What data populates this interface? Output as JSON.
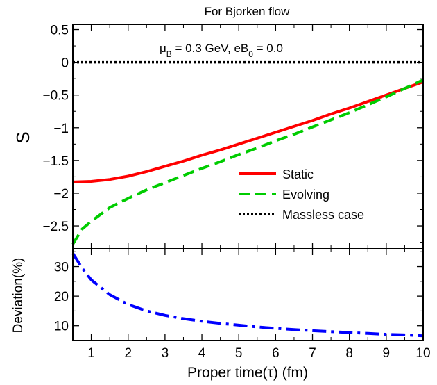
{
  "chart_data": [
    {
      "type": "line",
      "title": "For Bjorken flow",
      "annotation": {
        "mu_sym": "μ",
        "mu_sub": "B",
        "mid": " = 0.3 GeV, eB",
        "b_sub": "0",
        "tail": " = 0.0"
      },
      "ylabel": "S",
      "xlabel": "",
      "xlim": [
        0.5,
        10
      ],
      "ylim": [
        -2.85,
        0.58
      ],
      "xticks": [
        1,
        2,
        3,
        4,
        5,
        6,
        7,
        8,
        9,
        10
      ],
      "yticks": [
        0.5,
        0,
        -0.5,
        -1,
        -1.5,
        -2,
        -2.5
      ],
      "ytick_labels": [
        "0.5",
        "0",
        "−0.5",
        "−1",
        "−1.5",
        "−2",
        "−2.5"
      ],
      "legend_position": "lower-right",
      "series": [
        {
          "name": "Static",
          "color": "#ff0000",
          "dash": "solid",
          "x": [
            0.5,
            1,
            1.5,
            2,
            2.5,
            3,
            3.5,
            4,
            4.5,
            5,
            5.5,
            6,
            6.5,
            7,
            7.5,
            8,
            8.5,
            9,
            9.5,
            10
          ],
          "y": [
            -1.83,
            -1.82,
            -1.79,
            -1.74,
            -1.67,
            -1.59,
            -1.51,
            -1.42,
            -1.34,
            -1.25,
            -1.16,
            -1.07,
            -0.98,
            -0.89,
            -0.79,
            -0.7,
            -0.6,
            -0.5,
            -0.4,
            -0.3
          ]
        },
        {
          "name": "Evolving",
          "color": "#00cc00",
          "dash": "long-dash",
          "x": [
            0.5,
            0.75,
            1,
            1.5,
            2,
            2.5,
            3,
            3.5,
            4,
            4.5,
            5,
            5.5,
            6,
            6.5,
            7,
            7.5,
            8,
            8.5,
            9,
            9.5,
            10
          ],
          "y": [
            -2.78,
            -2.55,
            -2.43,
            -2.22,
            -2.08,
            -1.95,
            -1.84,
            -1.73,
            -1.62,
            -1.52,
            -1.41,
            -1.31,
            -1.2,
            -1.1,
            -0.99,
            -0.88,
            -0.77,
            -0.65,
            -0.53,
            -0.4,
            -0.27
          ]
        },
        {
          "name": "Massless case",
          "color": "#000000",
          "dash": "dotted",
          "x": [
            0.5,
            10
          ],
          "y": [
            0,
            0
          ]
        }
      ]
    },
    {
      "type": "line",
      "ylabel": "Deviation(%)",
      "xlabel": "Proper time(τ) (fm)",
      "xlim": [
        0.5,
        10
      ],
      "ylim": [
        5,
        36
      ],
      "xticks": [
        1,
        2,
        3,
        4,
        5,
        6,
        7,
        8,
        9,
        10
      ],
      "yticks": [
        10,
        20,
        30
      ],
      "ytick_labels": [
        "10",
        "20",
        "30"
      ],
      "series": [
        {
          "color": "#0000ff",
          "dash": "dash-dot",
          "x": [
            0.5,
            0.75,
            1,
            1.5,
            2,
            2.5,
            3,
            3.5,
            4,
            4.5,
            5,
            5.5,
            6,
            6.5,
            7,
            7.5,
            8,
            8.5,
            9,
            9.5,
            10
          ],
          "y": [
            34.5,
            29.5,
            25.5,
            20.5,
            17.2,
            15.0,
            13.5,
            12.4,
            11.5,
            10.8,
            10.2,
            9.6,
            9.1,
            8.7,
            8.3,
            8.0,
            7.7,
            7.4,
            7.1,
            6.9,
            6.6
          ]
        }
      ]
    }
  ]
}
